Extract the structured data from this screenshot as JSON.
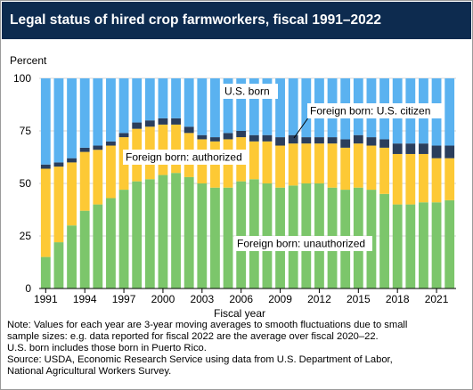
{
  "title": "Legal status of hired crop farmworkers, fiscal 1991–2022",
  "chart_data": {
    "type": "bar",
    "stacked": true,
    "ylabel": "Percent",
    "xlabel": "Fiscal year",
    "ylim": [
      0,
      100
    ],
    "yticks": [
      0,
      25,
      50,
      75,
      100
    ],
    "categories": [
      "1991",
      "1992",
      "1993",
      "1994",
      "1995",
      "1996",
      "1997",
      "1998",
      "1999",
      "2000",
      "2001",
      "2002",
      "2003",
      "2004",
      "2005",
      "2006",
      "2007",
      "2008",
      "2009",
      "2010",
      "2011",
      "2012",
      "2013",
      "2014",
      "2015",
      "2016",
      "2017",
      "2018",
      "2019",
      "2020",
      "2021",
      "2022"
    ],
    "xtick_labels": [
      "1991",
      "1994",
      "1997",
      "2000",
      "2003",
      "2006",
      "2009",
      "2012",
      "2015",
      "2018",
      "2021"
    ],
    "series": [
      {
        "name": "Foreign born: unauthorized",
        "color": "#7cc66b",
        "values": [
          15,
          22,
          30,
          37,
          40,
          43,
          47,
          51,
          52,
          54,
          55,
          53,
          50,
          48,
          48,
          51,
          52,
          50,
          48,
          49,
          50,
          50,
          48,
          47,
          48,
          47,
          45,
          40,
          40,
          41,
          41,
          42
        ]
      },
      {
        "name": "Foreign born: authorized",
        "color": "#fdc935",
        "values": [
          42,
          36,
          30,
          28,
          26,
          25,
          25,
          25,
          25,
          24,
          23,
          21,
          21,
          22,
          23,
          21,
          18,
          20,
          20,
          20,
          19,
          19,
          21,
          20,
          21,
          21,
          22,
          24,
          24,
          23,
          21,
          20
        ]
      },
      {
        "name": "Foreign born: U.S. citizen",
        "color": "#2a3e5c",
        "values": [
          2,
          2,
          2,
          2,
          2,
          2,
          2,
          3,
          3,
          3,
          3,
          3,
          2,
          2,
          3,
          3,
          3,
          3,
          4,
          4,
          3,
          3,
          3,
          4,
          4,
          4,
          4,
          5,
          5,
          5,
          6,
          6
        ]
      },
      {
        "name": "U.S. born",
        "color": "#5ab2f0",
        "values": [
          41,
          40,
          38,
          33,
          32,
          30,
          26,
          21,
          20,
          19,
          19,
          23,
          27,
          28,
          26,
          25,
          27,
          27,
          28,
          27,
          28,
          28,
          28,
          29,
          27,
          28,
          29,
          31,
          31,
          31,
          32,
          32
        ]
      }
    ]
  },
  "annotations": {
    "us_born": "U.S. born",
    "citizen": "Foreign born: U.S. citizen",
    "authorized": "Foreign born: authorized",
    "unauthorized": "Foreign born: unauthorized"
  },
  "notes": [
    "Note: Values for each year are 3-year moving averages to smooth fluctuations due to small",
    "sample sizes: e.g. data reported for fiscal 2022 are the average over fiscal 2020–22.",
    "U.S. born includes those born in Puerto Rico.",
    "Source: USDA, Economic Research Service using data from U.S. Department of Labor,",
    "National Agricultural Workers Survey."
  ]
}
